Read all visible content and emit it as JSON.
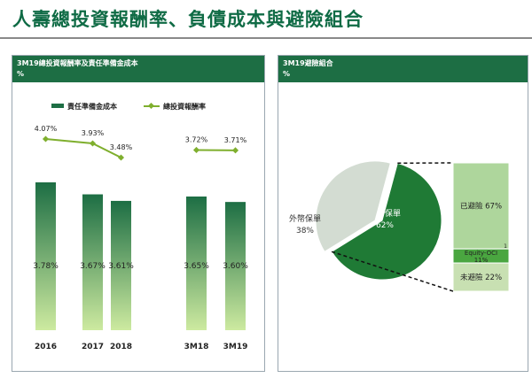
{
  "page_title": "人壽總投資報酬率、負債成本與避險組合",
  "left_panel": {
    "header_title": "3M19總投資報酬率及責任準備金成本",
    "header_unit": "%"
  },
  "right_panel": {
    "header_title": "3M19避險組合",
    "header_unit": "%"
  },
  "chart_data": [
    {
      "type": "bar",
      "categories": [
        "2016",
        "2017",
        "2018",
        "3M18",
        "3M19"
      ],
      "series": [
        {
          "name": "責任準備金成本",
          "kind": "bar",
          "values": [
            3.78,
            3.67,
            3.61,
            3.65,
            3.6
          ],
          "labels": [
            "3.78%",
            "3.67%",
            "3.61%",
            "3.65%",
            "3.60%"
          ]
        },
        {
          "name": "總投資報酬率",
          "kind": "line",
          "values": [
            4.07,
            3.93,
            3.48,
            3.72,
            3.71
          ],
          "labels": [
            "4.07%",
            "3.93%",
            "3.48%",
            "3.72%",
            "3.71%"
          ]
        }
      ],
      "line_segments": [
        [
          0,
          1,
          2
        ],
        [
          3,
          4
        ]
      ],
      "colors": {
        "bar_top": "#1d6e44",
        "bar_bottom": "#cdeaa0",
        "line": "#7faf2e"
      },
      "legend_position": "top"
    },
    {
      "type": "pie",
      "slices": [
        {
          "label": "台幣保單",
          "value": 62,
          "value_label": "62%",
          "color": "#1f7a35"
        },
        {
          "label": "外幣保單",
          "value": 38,
          "value_label": "38%",
          "color": "#d3dcd2"
        }
      ],
      "breakdown": [
        {
          "label": "已避險 67%",
          "value": 67,
          "color": "#aed69c"
        },
        {
          "label": "Equity-OCI",
          "sublabel": "11%",
          "value": 11,
          "color": "#4aa640"
        },
        {
          "label": "未避險 22%",
          "value": 22,
          "color": "#c8e0b2"
        }
      ],
      "breakdown_marker": "1"
    }
  ]
}
